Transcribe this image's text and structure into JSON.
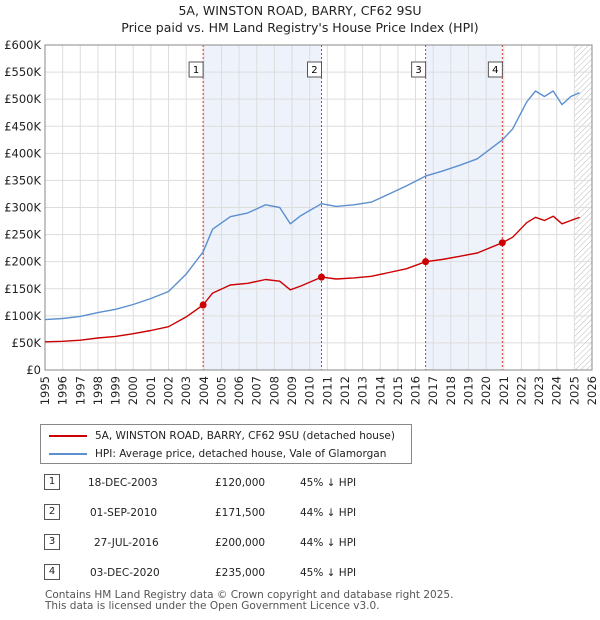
{
  "chart_data": {
    "type": "line",
    "title": "5A, WINSTON ROAD, BARRY, CF62 9SU",
    "subtitle": "Price paid vs. HM Land Registry's House Price Index (HPI)",
    "xlim": [
      1995,
      2026
    ],
    "ylim": [
      0,
      600000
    ],
    "x_ticks": [
      "1995",
      "1996",
      "1997",
      "1998",
      "1999",
      "2000",
      "2001",
      "2002",
      "2003",
      "2004",
      "2005",
      "2006",
      "2007",
      "2008",
      "2009",
      "2010",
      "2011",
      "2012",
      "2013",
      "2014",
      "2015",
      "2016",
      "2017",
      "2018",
      "2019",
      "2020",
      "2021",
      "2022",
      "2023",
      "2024",
      "2025",
      "2026"
    ],
    "y_ticks": [
      {
        "value": 0,
        "label": "£0"
      },
      {
        "value": 50000,
        "label": "£50K"
      },
      {
        "value": 100000,
        "label": "£100K"
      },
      {
        "value": 150000,
        "label": "£150K"
      },
      {
        "value": 200000,
        "label": "£200K"
      },
      {
        "value": 250000,
        "label": "£250K"
      },
      {
        "value": 300000,
        "label": "£300K"
      },
      {
        "value": 350000,
        "label": "£350K"
      },
      {
        "value": 400000,
        "label": "£400K"
      },
      {
        "value": 450000,
        "label": "£450K"
      },
      {
        "value": 500000,
        "label": "£500K"
      },
      {
        "value": 550000,
        "label": "£550K"
      },
      {
        "value": 600000,
        "label": "£600K"
      }
    ],
    "series": [
      {
        "name": "5A, WINSTON ROAD, BARRY, CF62 9SU (detached house)",
        "color": "#cc0000",
        "x": [
          1995.0,
          1996.0,
          1997.0,
          1998.0,
          1999.0,
          2000.0,
          2001.0,
          2002.0,
          2003.0,
          2003.96,
          2004.5,
          2005.5,
          2006.5,
          2007.5,
          2008.3,
          2008.9,
          2009.5,
          2010.67,
          2011.5,
          2012.5,
          2013.5,
          2014.5,
          2015.5,
          2016.57,
          2017.5,
          2018.5,
          2019.5,
          2020.92,
          2021.5,
          2022.3,
          2022.8,
          2023.3,
          2023.8,
          2024.3,
          2024.8,
          2025.3
        ],
        "y": [
          52000,
          53000,
          55000,
          59000,
          62000,
          67000,
          73000,
          80000,
          98000,
          120000,
          142000,
          157000,
          160000,
          167000,
          164000,
          148000,
          155000,
          171500,
          168000,
          170000,
          173000,
          180000,
          187000,
          200000,
          204000,
          210000,
          216000,
          235000,
          245000,
          272000,
          282000,
          276000,
          284000,
          270000,
          276000,
          282000
        ]
      },
      {
        "name": "HPI: Average price, detached house, Vale of Glamorgan",
        "color": "#5b8fd0",
        "x": [
          1995.0,
          1996.0,
          1997.0,
          1998.0,
          1999.0,
          2000.0,
          2001.0,
          2002.0,
          2003.0,
          2003.96,
          2004.5,
          2005.5,
          2006.5,
          2007.5,
          2008.3,
          2008.9,
          2009.5,
          2010.67,
          2011.5,
          2012.5,
          2013.5,
          2014.5,
          2015.5,
          2016.57,
          2017.5,
          2018.5,
          2019.5,
          2020.92,
          2021.5,
          2022.3,
          2022.8,
          2023.3,
          2023.8,
          2024.3,
          2024.8,
          2025.3
        ],
        "y": [
          93000,
          95000,
          99000,
          106000,
          112000,
          121000,
          132000,
          145000,
          177000,
          218000,
          260000,
          283000,
          290000,
          305000,
          300000,
          270000,
          285000,
          307000,
          302000,
          305000,
          310000,
          325000,
          340000,
          358000,
          367000,
          378000,
          390000,
          425000,
          445000,
          495000,
          515000,
          505000,
          515000,
          490000,
          505000,
          512000
        ]
      }
    ],
    "sales": [
      {
        "marker": "1",
        "x": 2003.96,
        "y": 120000
      },
      {
        "marker": "2",
        "x": 2010.67,
        "y": 171500
      },
      {
        "marker": "3",
        "x": 2016.57,
        "y": 200000
      },
      {
        "marker": "4",
        "x": 2020.92,
        "y": 235000
      }
    ],
    "future_hatch_from": 2025.0
  },
  "legend": {
    "property_label": "5A, WINSTON ROAD, BARRY, CF62 9SU (detached house)",
    "hpi_label": "HPI: Average price, detached house, Vale of Glamorgan"
  },
  "sales_table": [
    {
      "num": "1",
      "date": "18-DEC-2003",
      "price": "£120,000",
      "diff": "45% ↓ HPI"
    },
    {
      "num": "2",
      "date": "01-SEP-2010",
      "price": "£171,500",
      "diff": "44% ↓ HPI"
    },
    {
      "num": "3",
      "date": "27-JUL-2016",
      "price": "£200,000",
      "diff": "44% ↓ HPI"
    },
    {
      "num": "4",
      "date": "03-DEC-2020",
      "price": "£235,000",
      "diff": "45% ↓ HPI"
    }
  ],
  "footer": {
    "line1": "Contains HM Land Registry data © Crown copyright and database right 2025.",
    "line2": "This data is licensed under the Open Government Licence v3.0."
  }
}
